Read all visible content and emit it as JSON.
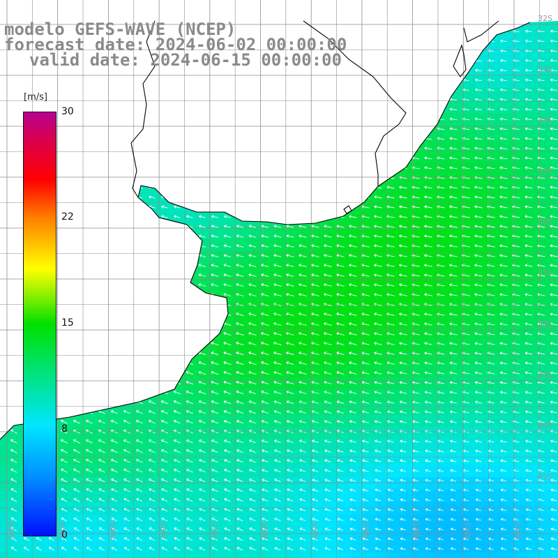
{
  "title": {
    "line1": "modelo GEFS-WAVE (NCEP)",
    "line2": "forecast date: 2024-06-02 00:00:00",
    "line3": "valid date: 2024-06-15 00:00:00"
  },
  "colorbar": {
    "unit": "[m/s]",
    "ticks": [
      "30",
      "22",
      "15",
      "8",
      "0"
    ],
    "min": 0,
    "max": 30
  },
  "lat_labels": [
    "32S",
    "33S",
    "34S",
    "35S",
    "36S",
    "37S",
    "38S",
    "39S",
    "40S",
    "41S"
  ],
  "lon_labels": [
    "61W",
    "60W",
    "59W",
    "58W",
    "57W",
    "56W",
    "55W",
    "54W",
    "53W",
    "52W",
    "51W"
  ],
  "colors": {
    "land": "#ffffff",
    "grid": "#8c8c8c",
    "coast": "#000000",
    "arrow": "#ffffff"
  }
}
